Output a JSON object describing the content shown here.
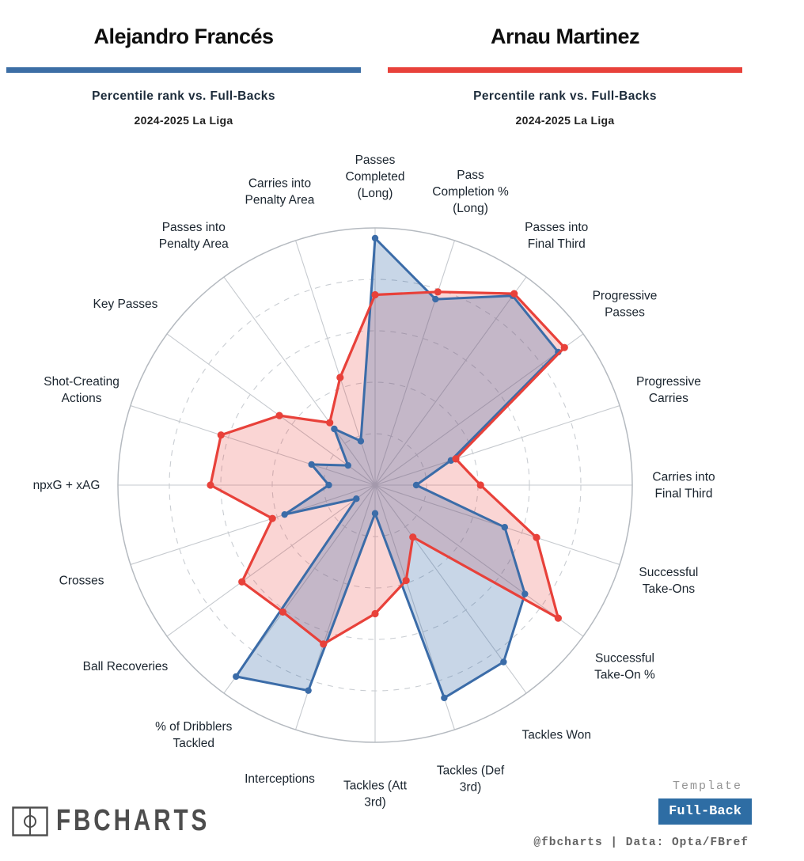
{
  "header": {
    "left": {
      "title": "Alejandro Francés",
      "subtitle": "Percentile rank vs. Full-Backs",
      "season": "2024-2025 La Liga",
      "color": "#3c6ea5"
    },
    "right": {
      "title": "Arnau Martinez",
      "subtitle": "Percentile rank vs. Full-Backs",
      "season": "2024-2025 La Liga",
      "color": "#e8413a"
    }
  },
  "chart_data": {
    "type": "radar",
    "rmax": 100,
    "grid": {
      "dashed_rings": [
        20,
        40,
        60,
        80
      ],
      "solid_ring": 100,
      "spokes": 20
    },
    "categories": [
      "Passes\nCompleted\n(Long)",
      "Pass\nCompletion %\n(Long)",
      "Passes into\nFinal Third",
      "Progressive\nPasses",
      "Progressive\nCarries",
      "Carries into\nFinal Third",
      "Successful\nTake-Ons",
      "Successful\nTake-On %",
      "Tackles Won",
      "Tackles (Def\n3rd)",
      "Tackles (Att\n3rd)",
      "Interceptions",
      "% of Dribblers\nTackled",
      "Ball Recoveries",
      "Crosses",
      "npxG + xAG",
      "Shot-Creating\nActions",
      "Key Passes",
      "Passes into\nPenalty Area",
      "Carries into\nPenalty Area"
    ],
    "series": [
      {
        "name": "Alejandro Francés",
        "color": "#3b6ca8",
        "fill": "rgba(59,108,168,0.28)",
        "values": [
          96,
          76,
          91,
          88,
          31,
          16,
          53,
          72,
          85,
          87,
          11,
          84,
          92,
          9,
          37,
          18,
          26,
          13,
          27,
          18
        ]
      },
      {
        "name": "Arnau Martinez",
        "color": "#e8413a",
        "fill": "rgba(232,65,58,0.22)",
        "values": [
          74,
          79,
          92,
          91,
          33,
          41,
          66,
          88,
          25,
          39,
          50,
          65,
          61,
          64,
          42,
          64,
          63,
          46,
          30,
          44
        ]
      }
    ]
  },
  "footer": {
    "logo_text": "FBCHARTS",
    "template_label": "Template",
    "template_value": "Full-Back",
    "button_color": "#2e6da4",
    "credit": "@fbcharts | Data: Opta/FBref"
  }
}
